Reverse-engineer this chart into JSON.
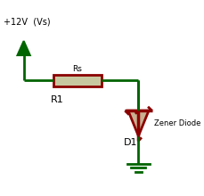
{
  "bg_color": "#ffffff",
  "wire_color": "#006400",
  "component_color": "#8b0000",
  "resistor_fill": "#c8c8a0",
  "diode_fill": "#c8b090",
  "text_color": "#000000",
  "title": "+12V  (Vs)",
  "label_R1": "R1",
  "label_Rs": "Rs",
  "label_D1": "D1",
  "label_zener": "Zener Diode",
  "fig_width": 2.29,
  "fig_height": 2.2,
  "dpi": 100,
  "lw_wire": 2.0,
  "lw_comp": 2.0
}
